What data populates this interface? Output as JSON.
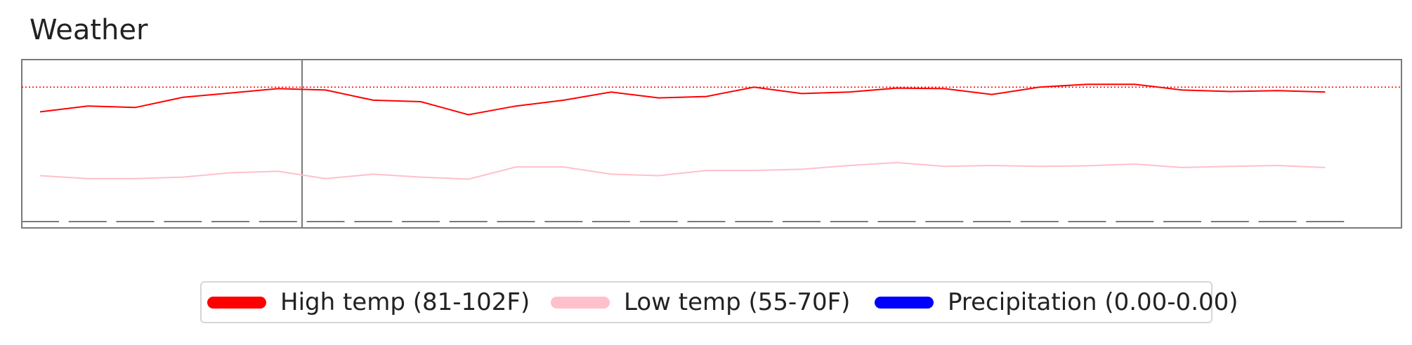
{
  "chart_data": {
    "type": "line",
    "title": "Weather",
    "x": [
      1,
      2,
      3,
      4,
      5,
      6,
      7,
      8,
      9,
      10,
      11,
      12,
      13,
      14,
      15,
      16,
      17,
      18,
      19,
      20,
      21,
      22,
      23,
      24,
      25,
      26,
      27,
      28
    ],
    "series": [
      {
        "name": "High temp (81-102F)",
        "color": "#ff0000",
        "values": [
          88,
          90,
          89.5,
          93,
          94.5,
          96,
          95.5,
          92,
          91.5,
          87,
          90,
          92,
          94.8,
          92.8,
          93.3,
          96.5,
          94.3,
          94.8,
          96.2,
          96,
          94,
          96.5,
          97.5,
          97.5,
          95.5,
          95,
          95.3,
          94.8
        ]
      },
      {
        "name": "Low temp (55-70F)",
        "color": "#ffc0cb",
        "values": [
          66,
          65,
          65,
          65.5,
          67,
          67.5,
          65,
          66.5,
          65.5,
          64.8,
          69,
          69,
          66.5,
          66,
          67.8,
          67.8,
          68.2,
          69.5,
          70.5,
          69.2,
          69.5,
          69.2,
          69.4,
          70,
          68.8,
          69.2,
          69.5,
          68.8
        ]
      },
      {
        "name": "Precipitation (0.00-0.00)",
        "color": "#0000ff",
        "values": [
          0,
          0,
          0,
          0,
          0,
          0,
          0,
          0,
          0,
          0,
          0,
          0,
          0,
          0,
          0,
          0,
          0,
          0,
          0,
          0,
          0,
          0,
          0,
          0,
          0,
          0,
          0,
          0
        ]
      }
    ],
    "reference_line": 96.5,
    "ylim": [
      48,
      106
    ],
    "legend_position": "bottom-center",
    "grid": false
  }
}
